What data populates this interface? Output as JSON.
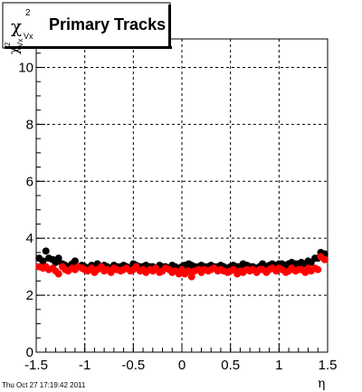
{
  "chart_data": {
    "type": "scatter",
    "title": "Primary Tracks",
    "title_symbol": {
      "greek": "χ",
      "sup": "2",
      "sub": "Vx"
    },
    "ylabel": {
      "greek": "χ",
      "sup": "2",
      "sub": "Vx"
    },
    "xlabel": "η",
    "xlim": [
      -1.5,
      1.5
    ],
    "ylim": [
      0,
      11
    ],
    "x_ticks": [
      -1.5,
      -1,
      -0.5,
      0,
      0.5,
      1,
      1.5
    ],
    "x_tick_labels": [
      "-1.5",
      "-1",
      "-0.5",
      "0",
      "0.5",
      "1",
      "1.5"
    ],
    "y_ticks": [
      0,
      2,
      4,
      6,
      8,
      10
    ],
    "y_tick_labels": [
      "0",
      "2",
      "4",
      "6",
      "8",
      "10"
    ],
    "grid": true,
    "colors": {
      "series_a": "#000000",
      "series_b": "#ff0000"
    },
    "series": [
      {
        "color": "#000000",
        "x": [
          -1.47,
          -1.43,
          -1.4,
          -1.37,
          -1.33,
          -1.3,
          -1.27,
          -1.23,
          -1.2,
          -1.17,
          -1.13,
          -1.1,
          -1.07,
          -1.03,
          -1.0,
          -0.97,
          -0.93,
          -0.9,
          -0.87,
          -0.83,
          -0.8,
          -0.77,
          -0.73,
          -0.7,
          -0.67,
          -0.63,
          -0.6,
          -0.57,
          -0.53,
          -0.5,
          -0.47,
          -0.43,
          -0.4,
          -0.37,
          -0.33,
          -0.3,
          -0.27,
          -0.23,
          -0.2,
          -0.17,
          -0.13,
          -0.1,
          -0.07,
          -0.03,
          0.0,
          0.03,
          0.07,
          0.1,
          0.13,
          0.17,
          0.2,
          0.23,
          0.27,
          0.3,
          0.33,
          0.37,
          0.4,
          0.43,
          0.47,
          0.5,
          0.53,
          0.57,
          0.6,
          0.63,
          0.67,
          0.7,
          0.73,
          0.77,
          0.8,
          0.83,
          0.87,
          0.9,
          0.93,
          0.97,
          1.0,
          1.03,
          1.07,
          1.1,
          1.13,
          1.17,
          1.2,
          1.23,
          1.27,
          1.3,
          1.33,
          1.37,
          1.4,
          1.43,
          1.47
        ],
        "y": [
          3.3,
          3.2,
          3.55,
          3.3,
          3.25,
          3.15,
          3.3,
          3.1,
          3.05,
          3.0,
          3.1,
          3.2,
          3.0,
          3.05,
          3.0,
          2.95,
          3.05,
          3.0,
          3.1,
          3.0,
          3.05,
          3.0,
          2.95,
          3.05,
          3.0,
          3.0,
          3.05,
          3.0,
          2.95,
          3.1,
          3.05,
          3.0,
          3.0,
          3.05,
          3.0,
          3.0,
          2.95,
          3.05,
          3.0,
          3.0,
          2.95,
          3.05,
          3.0,
          2.95,
          3.0,
          3.05,
          3.1,
          3.05,
          3.0,
          3.0,
          3.05,
          3.0,
          3.0,
          3.05,
          3.0,
          3.0,
          3.05,
          3.0,
          2.95,
          3.0,
          3.05,
          3.0,
          3.0,
          3.1,
          3.05,
          3.0,
          3.0,
          2.95,
          3.0,
          3.1,
          3.0,
          3.05,
          3.1,
          3.05,
          3.1,
          3.1,
          3.05,
          3.1,
          3.15,
          3.1,
          3.1,
          3.15,
          3.1,
          3.2,
          3.15,
          3.3,
          3.3,
          3.5,
          3.45
        ]
      },
      {
        "color": "#ff0000",
        "x": [
          -1.47,
          -1.43,
          -1.4,
          -1.37,
          -1.33,
          -1.3,
          -1.27,
          -1.23,
          -1.2,
          -1.17,
          -1.13,
          -1.1,
          -1.07,
          -1.03,
          -1.0,
          -0.97,
          -0.93,
          -0.9,
          -0.87,
          -0.83,
          -0.8,
          -0.77,
          -0.73,
          -0.7,
          -0.67,
          -0.63,
          -0.6,
          -0.57,
          -0.53,
          -0.5,
          -0.47,
          -0.43,
          -0.4,
          -0.37,
          -0.33,
          -0.3,
          -0.27,
          -0.23,
          -0.2,
          -0.17,
          -0.13,
          -0.1,
          -0.07,
          -0.03,
          0.0,
          0.03,
          0.07,
          0.1,
          0.13,
          0.17,
          0.2,
          0.23,
          0.27,
          0.3,
          0.33,
          0.37,
          0.4,
          0.43,
          0.47,
          0.5,
          0.53,
          0.57,
          0.6,
          0.63,
          0.67,
          0.7,
          0.73,
          0.77,
          0.8,
          0.83,
          0.87,
          0.9,
          0.93,
          0.97,
          1.0,
          1.03,
          1.07,
          1.1,
          1.13,
          1.17,
          1.2,
          1.23,
          1.27,
          1.3,
          1.33,
          1.37,
          1.4,
          1.43,
          1.47
        ],
        "y": [
          3.0,
          2.95,
          3.0,
          2.9,
          2.95,
          2.85,
          2.75,
          3.0,
          2.9,
          2.85,
          2.95,
          2.9,
          3.0,
          2.95,
          2.9,
          2.85,
          2.95,
          2.8,
          2.9,
          3.0,
          2.85,
          2.9,
          2.8,
          2.95,
          2.9,
          2.85,
          2.9,
          2.95,
          2.85,
          2.9,
          3.0,
          2.85,
          2.9,
          2.8,
          2.9,
          2.85,
          2.95,
          2.8,
          2.85,
          2.95,
          2.9,
          2.8,
          2.85,
          2.75,
          2.9,
          2.75,
          2.85,
          2.65,
          2.85,
          2.9,
          2.8,
          2.9,
          2.85,
          2.9,
          2.95,
          2.85,
          2.9,
          2.85,
          2.8,
          2.85,
          2.9,
          2.75,
          2.85,
          2.8,
          2.9,
          2.85,
          2.9,
          2.8,
          2.9,
          2.9,
          2.8,
          2.9,
          2.95,
          2.85,
          2.95,
          2.9,
          2.8,
          2.85,
          2.95,
          2.85,
          2.9,
          2.9,
          2.8,
          2.95,
          2.85,
          2.95,
          2.9,
          3.35,
          3.25
        ]
      }
    ]
  },
  "footer": {
    "timestamp": "Thu Oct 27 17:19:42 2011"
  }
}
